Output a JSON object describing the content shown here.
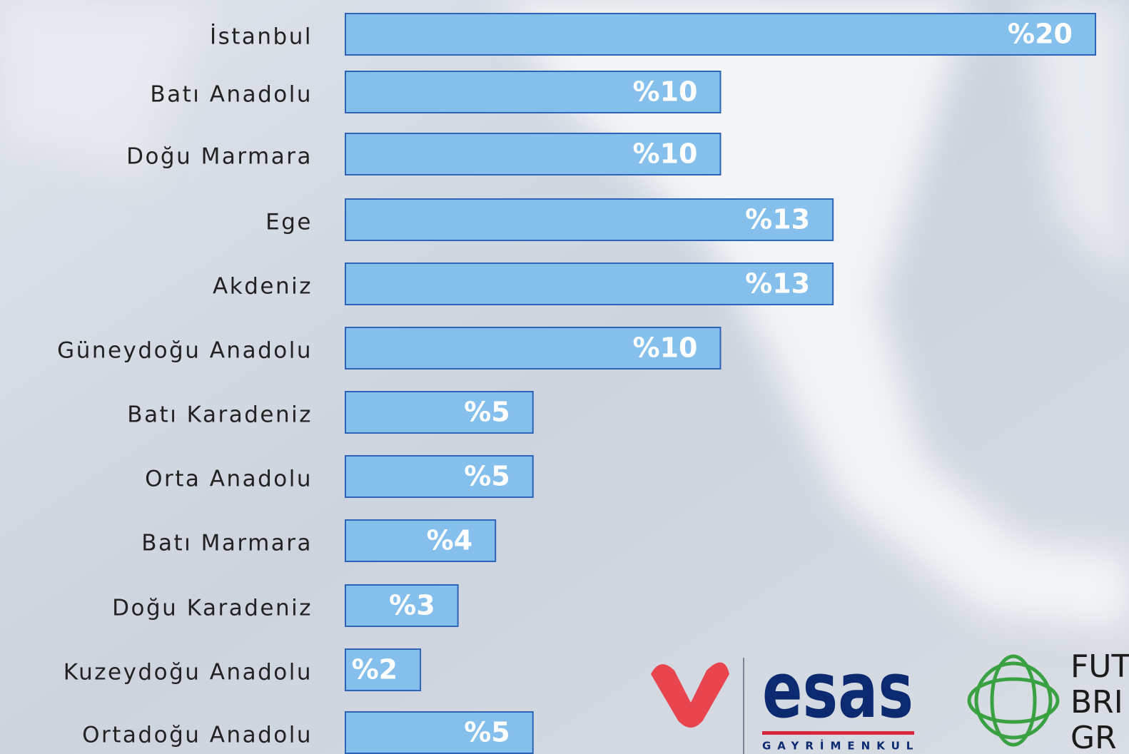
{
  "chart_data": {
    "type": "bar",
    "orientation": "horizontal",
    "categories": [
      "İstanbul",
      "Batı Anadolu",
      "Doğu Marmara",
      "Ege",
      "Akdeniz",
      "Güneydoğu Anadolu",
      "Batı Karadeniz",
      "Orta Anadolu",
      "Batı Marmara",
      "Doğu Karadeniz",
      "Kuzeydoğu Anadolu",
      "Ortadoğu Anadolu"
    ],
    "values": [
      20,
      10,
      10,
      13,
      13,
      10,
      5,
      5,
      4,
      3,
      2,
      5
    ],
    "value_labels": [
      "%20",
      "%10",
      "%10",
      "%13",
      "%13",
      "%10",
      "%5",
      "%5",
      "%4",
      "%3",
      "%2",
      "%5"
    ],
    "color": "#85bfec",
    "edge_color": "#2f63b8",
    "xlim": [
      0,
      20
    ]
  },
  "logos": {
    "esas": "esas",
    "esas_subtitle": "GAYRİMENKUL",
    "partner_lines": [
      "FUT",
      "BRI",
      "GR"
    ]
  }
}
